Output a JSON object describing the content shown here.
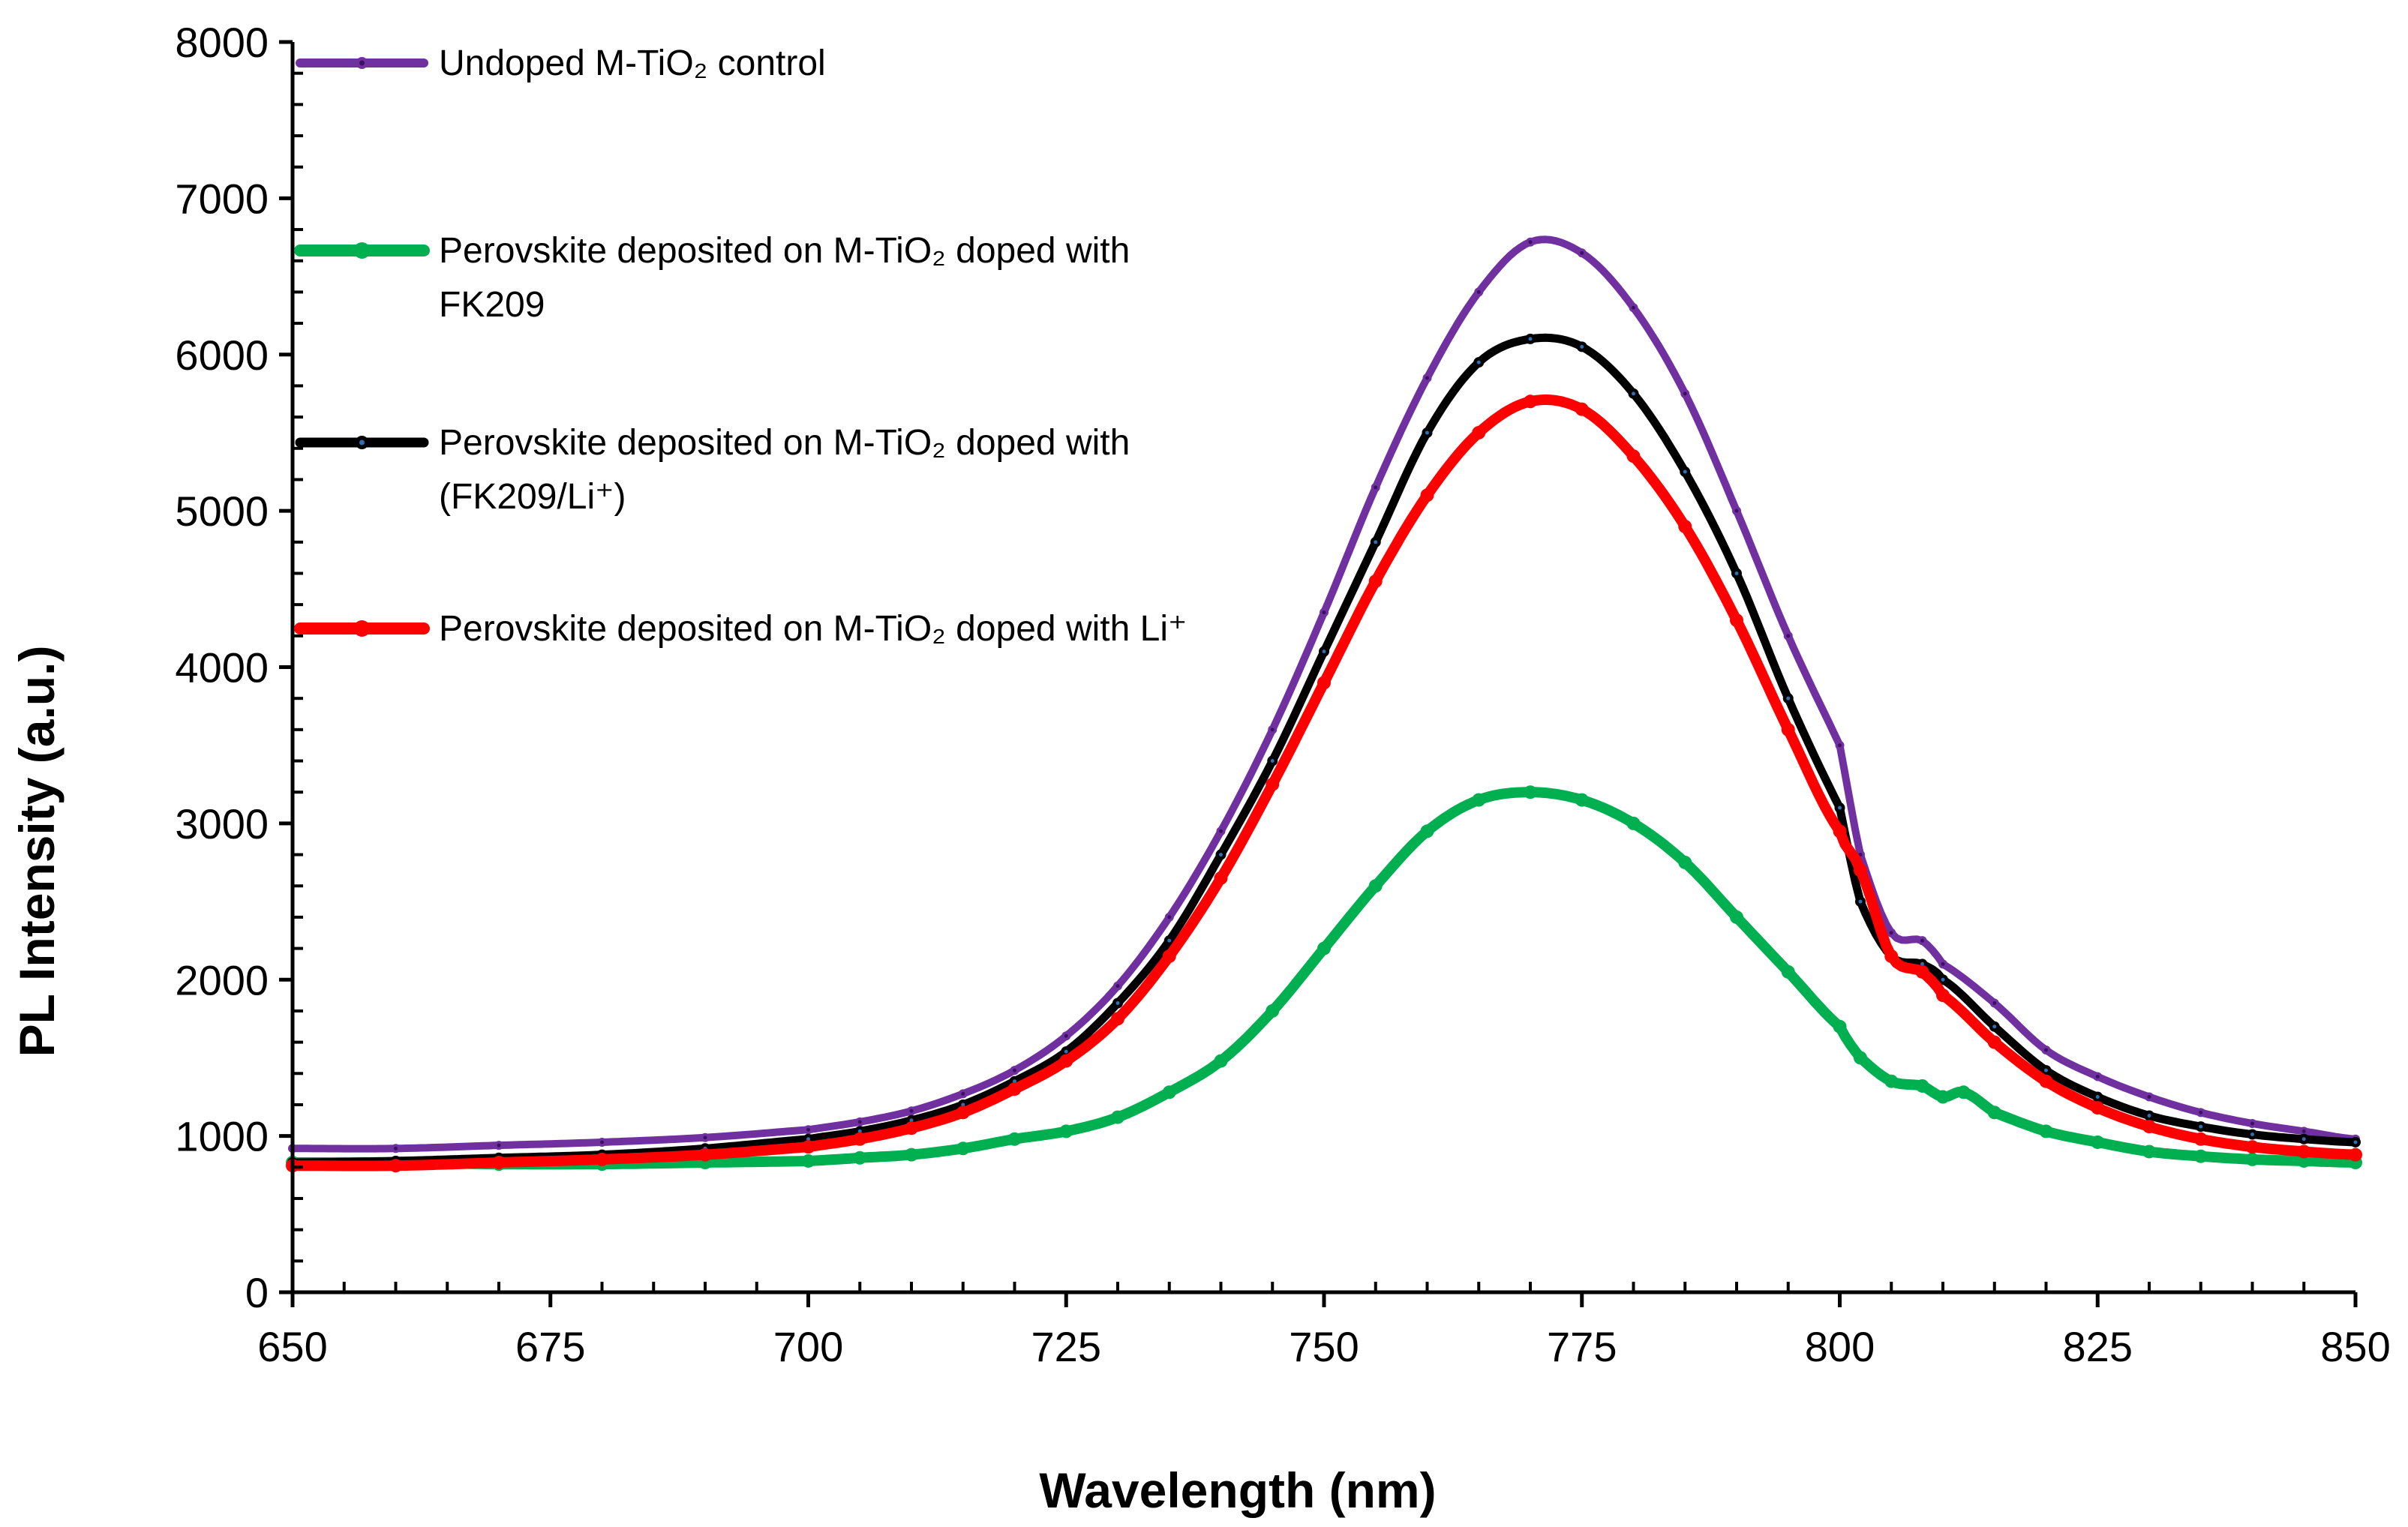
{
  "chart_data": {
    "type": "line",
    "title": "",
    "xlabel": "Wavelength (nm)",
    "ylabel": "PL Intensity (a.u.)",
    "xlim": [
      650,
      850
    ],
    "ylim": [
      0,
      8000
    ],
    "x_ticks": [
      650,
      675,
      700,
      725,
      750,
      775,
      800,
      825,
      850
    ],
    "y_ticks": [
      0,
      1000,
      2000,
      3000,
      4000,
      5000,
      6000,
      7000,
      8000
    ],
    "x_tick_labels": [
      "650",
      "675",
      "700",
      "725",
      "750",
      "775",
      "800",
      "825",
      "850"
    ],
    "y_tick_labels": [
      "0",
      "1000",
      "2000",
      "3000",
      "4000",
      "5000",
      "6000",
      "7000",
      "8000"
    ],
    "grid": false,
    "legend_position": "top-left",
    "series": [
      {
        "name": "Undoped M-TiO₂ control",
        "color": "#7030A0",
        "marker": "circle-dark-dots",
        "x": [
          650,
          660,
          670,
          680,
          690,
          700,
          705,
          710,
          715,
          720,
          725,
          730,
          735,
          740,
          745,
          750,
          755,
          760,
          765,
          770,
          775,
          780,
          785,
          790,
          795,
          800,
          802,
          805,
          808,
          810,
          815,
          820,
          825,
          830,
          835,
          840,
          845,
          850
        ],
        "values": [
          920,
          920,
          940,
          960,
          990,
          1040,
          1090,
          1160,
          1270,
          1420,
          1640,
          1960,
          2400,
          2950,
          3600,
          4350,
          5150,
          5850,
          6400,
          6720,
          6650,
          6300,
          5750,
          5000,
          4200,
          3500,
          2800,
          2300,
          2250,
          2100,
          1850,
          1550,
          1380,
          1250,
          1150,
          1080,
          1030,
          980
        ]
      },
      {
        "name": "Perovskite deposited on M-TiO₂ doped with FK209",
        "color": "#00B050",
        "marker": "circle-large",
        "x": [
          650,
          660,
          670,
          680,
          690,
          700,
          705,
          710,
          715,
          720,
          725,
          730,
          735,
          740,
          745,
          750,
          755,
          760,
          765,
          770,
          775,
          780,
          785,
          790,
          795,
          800,
          802,
          805,
          808,
          810,
          812,
          815,
          820,
          825,
          830,
          835,
          840,
          845,
          850
        ],
        "values": [
          830,
          830,
          820,
          820,
          830,
          840,
          860,
          880,
          920,
          980,
          1030,
          1120,
          1280,
          1480,
          1800,
          2200,
          2600,
          2950,
          3150,
          3200,
          3150,
          3000,
          2750,
          2400,
          2050,
          1700,
          1500,
          1350,
          1320,
          1250,
          1280,
          1150,
          1030,
          960,
          900,
          870,
          850,
          840,
          830
        ]
      },
      {
        "name": "Perovskite deposited on M-TiO₂ doped with (FK209/Li⁺)",
        "color": "#000000",
        "marker": "circle-blue-dots",
        "x": [
          650,
          660,
          670,
          680,
          690,
          700,
          705,
          710,
          715,
          720,
          725,
          730,
          735,
          740,
          745,
          750,
          755,
          760,
          765,
          770,
          775,
          780,
          785,
          790,
          795,
          800,
          802,
          805,
          808,
          810,
          815,
          820,
          825,
          830,
          835,
          840,
          845,
          850
        ],
        "values": [
          830,
          840,
          860,
          880,
          920,
          980,
          1030,
          1100,
          1200,
          1350,
          1540,
          1850,
          2250,
          2800,
          3400,
          4100,
          4800,
          5500,
          5950,
          6100,
          6050,
          5750,
          5250,
          4600,
          3800,
          3100,
          2500,
          2150,
          2100,
          2000,
          1700,
          1420,
          1250,
          1130,
          1060,
          1010,
          980,
          960
        ]
      },
      {
        "name": "Perovskite deposited on M-TiO₂ doped with Li⁺",
        "color": "#FF0000",
        "marker": "circle-large",
        "x": [
          650,
          660,
          670,
          680,
          690,
          700,
          705,
          710,
          715,
          720,
          725,
          730,
          735,
          740,
          745,
          750,
          755,
          760,
          765,
          770,
          775,
          780,
          785,
          790,
          795,
          800,
          802,
          805,
          808,
          810,
          815,
          820,
          825,
          830,
          835,
          840,
          845,
          850
        ],
        "values": [
          810,
          810,
          830,
          850,
          880,
          930,
          980,
          1050,
          1150,
          1300,
          1480,
          1750,
          2150,
          2650,
          3250,
          3900,
          4550,
          5100,
          5500,
          5700,
          5650,
          5350,
          4900,
          4300,
          3600,
          2950,
          2700,
          2150,
          2050,
          1900,
          1600,
          1350,
          1180,
          1060,
          980,
          930,
          900,
          880
        ]
      }
    ]
  }
}
